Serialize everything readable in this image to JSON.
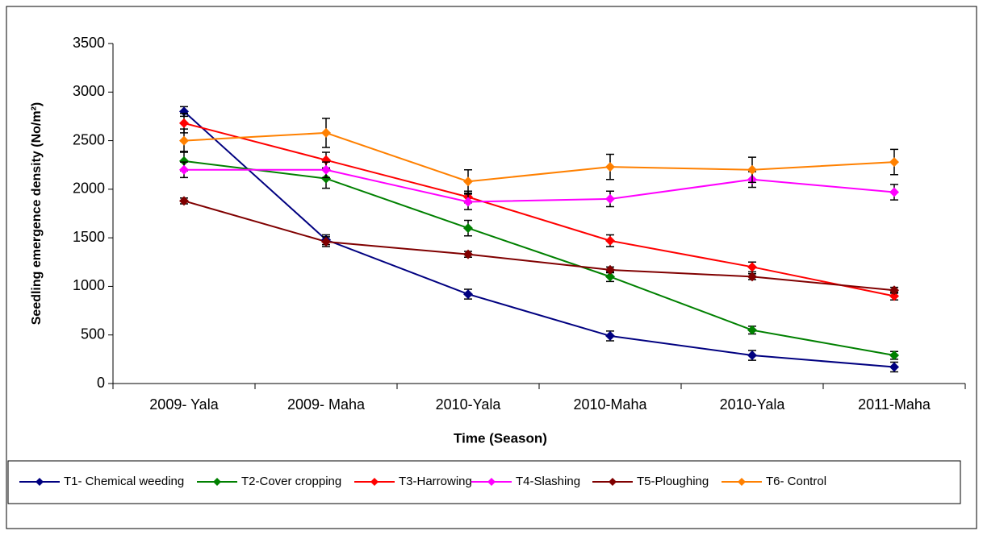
{
  "chart_data": {
    "type": "line",
    "x_label": "Time  (Season)",
    "y_label": "Seedling emergence density (No/m²)",
    "categories": [
      "2009- Yala",
      "2009- Maha",
      "2010-Yala",
      "2010-Maha",
      "2010-Yala",
      "2011-Maha"
    ],
    "ylim": [
      0,
      3500
    ],
    "yticks": [
      0,
      500,
      1000,
      1500,
      2000,
      2500,
      3000,
      3500
    ],
    "grid": false,
    "legend": "bottom",
    "series": [
      {
        "name": "T1- Chemical weeding",
        "color": "#000080",
        "values": [
          2800,
          1480,
          920,
          490,
          290,
          170
        ],
        "errors": [
          50,
          50,
          50,
          50,
          50,
          50
        ]
      },
      {
        "name": "T2-Cover cropping",
        "color": "#008000",
        "values": [
          2290,
          2110,
          1600,
          1100,
          550,
          290
        ],
        "errors": [
          100,
          100,
          80,
          50,
          40,
          40
        ]
      },
      {
        "name": "T3-Harrowing",
        "color": "#ff0000",
        "values": [
          2680,
          2300,
          1920,
          1470,
          1200,
          900
        ],
        "errors": [
          100,
          80,
          60,
          60,
          50,
          40
        ]
      },
      {
        "name": "T4-Slashing",
        "color": "#ff00ff",
        "values": [
          2200,
          2200,
          1870,
          1900,
          2100,
          1970
        ],
        "errors": [
          80,
          80,
          80,
          80,
          80,
          80
        ]
      },
      {
        "name": "T5-Ploughing",
        "color": "#800000",
        "values": [
          1880,
          1460,
          1330,
          1170,
          1100,
          960
        ],
        "errors": [
          30,
          50,
          30,
          30,
          30,
          30
        ]
      },
      {
        "name": "T6- Control",
        "color": "#ff8000",
        "values": [
          2500,
          2580,
          2080,
          2230,
          2200,
          2280
        ],
        "errors": [
          120,
          150,
          120,
          130,
          130,
          130
        ]
      }
    ]
  }
}
